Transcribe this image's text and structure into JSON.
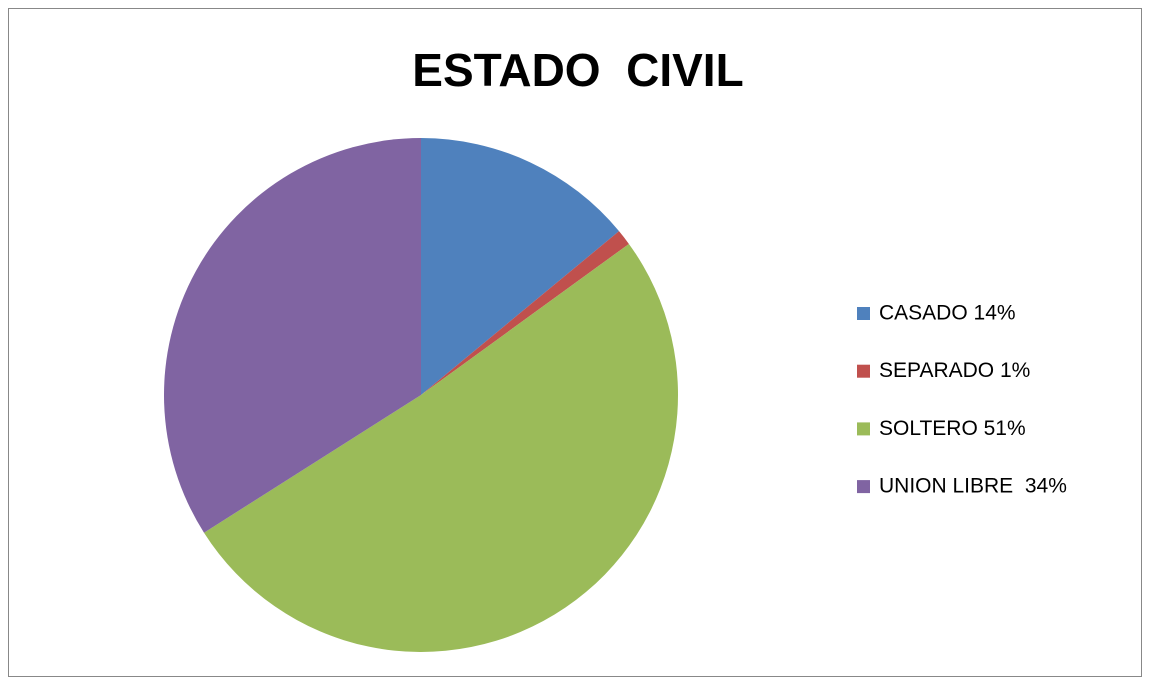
{
  "chart_data": {
    "type": "pie",
    "title": "ESTADO  CIVIL",
    "categories": [
      "CASADO 14%",
      "SEPARADO 1%",
      "SOLTERO 51%",
      "UNION LIBRE  34%"
    ],
    "values": [
      14,
      1,
      51,
      34
    ],
    "colors": [
      "#4f81bd",
      "#c0504d",
      "#9bbb59",
      "#8064a2"
    ],
    "legend": "right"
  }
}
